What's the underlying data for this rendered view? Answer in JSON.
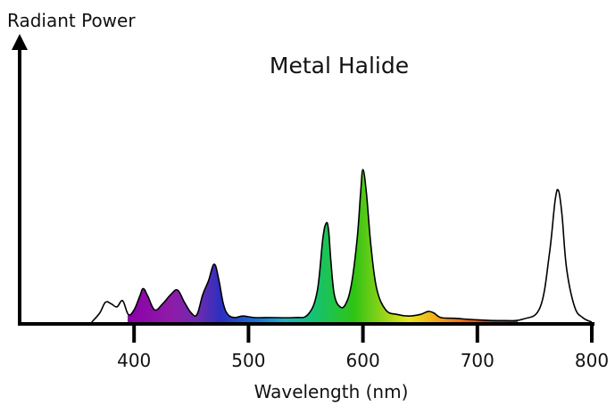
{
  "chart_data": {
    "type": "area",
    "title": "Metal Halide",
    "xlabel": "Wavelength (nm)",
    "ylabel": "Radiant Power",
    "xlim": [
      300,
      800
    ],
    "ylim": [
      0,
      1
    ],
    "xticks": [
      400,
      500,
      600,
      700,
      800
    ],
    "xtick_labels": [
      "400",
      "500",
      "600",
      "700",
      "800"
    ],
    "grid": false,
    "colored_range_nm": [
      390,
      720
    ],
    "series": [
      {
        "x": [
          363,
          370,
          375,
          380,
          385,
          390,
          395,
          400,
          405,
          408,
          412,
          418,
          425,
          432,
          438,
          444,
          450,
          455,
          460,
          465,
          470,
          474,
          478,
          482,
          488,
          495,
          505,
          520,
          540,
          552,
          560,
          565,
          568,
          570,
          572,
          575,
          580,
          585,
          590,
          595,
          598,
          600,
          603,
          607,
          612,
          620,
          630,
          640,
          650,
          657,
          662,
          668,
          680,
          700,
          720,
          740,
          755,
          763,
          768,
          771,
          774,
          778,
          785,
          792,
          800
        ],
        "y": [
          0.0,
          0.06,
          0.13,
          0.12,
          0.1,
          0.14,
          0.05,
          0.08,
          0.17,
          0.22,
          0.17,
          0.08,
          0.12,
          0.18,
          0.21,
          0.13,
          0.06,
          0.05,
          0.18,
          0.27,
          0.38,
          0.28,
          0.12,
          0.05,
          0.03,
          0.04,
          0.03,
          0.03,
          0.03,
          0.05,
          0.2,
          0.55,
          0.65,
          0.6,
          0.4,
          0.18,
          0.1,
          0.12,
          0.25,
          0.55,
          0.85,
          1.0,
          0.85,
          0.5,
          0.22,
          0.08,
          0.05,
          0.04,
          0.05,
          0.07,
          0.06,
          0.03,
          0.025,
          0.015,
          0.01,
          0.02,
          0.1,
          0.45,
          0.8,
          0.86,
          0.7,
          0.35,
          0.1,
          0.03,
          0.0
        ]
      }
    ]
  },
  "colors": {
    "axis": "#000000",
    "outline": "#000000",
    "stroke_outside_visible": "#000000"
  }
}
